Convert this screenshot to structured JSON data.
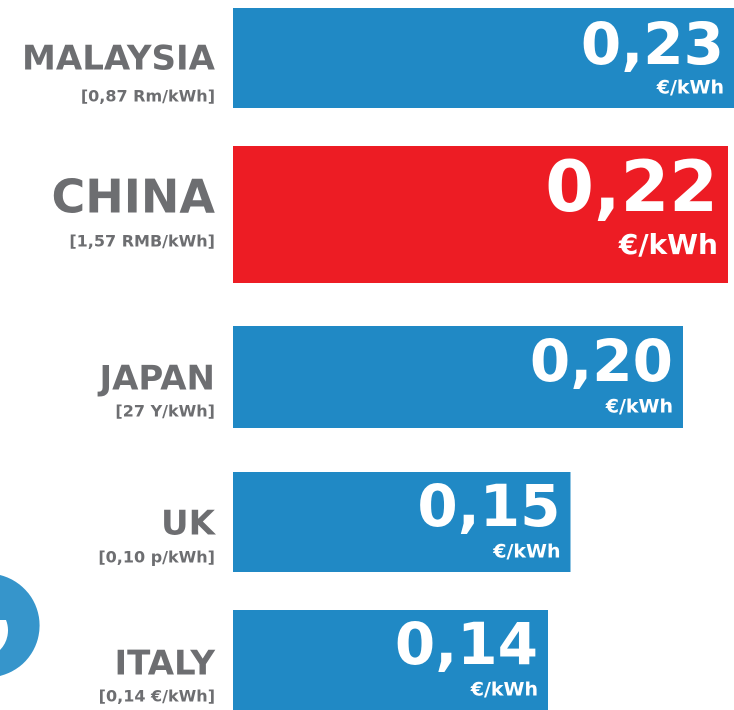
{
  "chart_data": {
    "type": "bar",
    "orientation": "horizontal",
    "categories": [
      "MALAYSIA",
      "CHINA",
      "JAPAN",
      "UK",
      "ITALY"
    ],
    "sublabels": [
      "[0,87 Rm/kWh]",
      "[1,57 RMB/kWh]",
      "[27 Y/kWh]",
      "[0,10 p/kWh]",
      "[0,14 €/kWh]"
    ],
    "values": [
      0.23,
      0.22,
      0.2,
      0.15,
      0.14
    ],
    "value_labels": [
      "0,23",
      "0,22",
      "0,20",
      "0,15",
      "0,14"
    ],
    "unit": "€/kWh",
    "colors": [
      "#2089c5",
      "#ed1c24",
      "#2089c5",
      "#2089c5",
      "#2089c5"
    ]
  }
}
